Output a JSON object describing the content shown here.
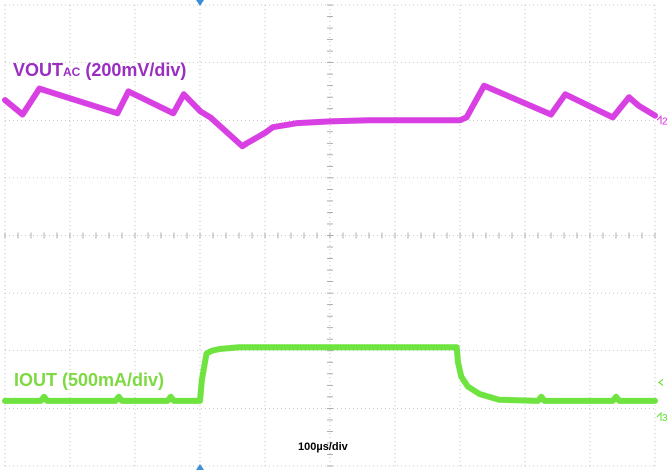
{
  "colors": {
    "ch2": "#d42be0",
    "ch2_label": "#9a2ec0",
    "ch3": "#5fe02a",
    "ch3_label": "#7fd943",
    "grid": "#9a9a9a",
    "trigger": "#3a8fd6"
  },
  "labels": {
    "ch2_main": "VOUT",
    "ch2_sub": "AC",
    "ch2_scale": " (200mV/div)",
    "ch3": "IOUT (500mA/div)",
    "timebase": "100µs/div"
  },
  "markers": {
    "ch2": "2",
    "ch3": "3"
  },
  "chart_data": {
    "type": "line",
    "title": "",
    "x_unit": "µs",
    "xlim": [
      0,
      1000
    ],
    "y_unit": "div",
    "ylim": [
      -4,
      4
    ],
    "grid": true,
    "series": [
      {
        "name": "VOUTAC (200mV/div)",
        "x": [
          0,
          27,
          53,
          173,
          190,
          259,
          275,
          301,
          316,
          365,
          372,
          400,
          412,
          450,
          500,
          560,
          600,
          650,
          700,
          710,
          737,
          840,
          862,
          935,
          960,
          975,
          1000
        ],
        "y": [
          2.35,
          2.1,
          2.55,
          2.12,
          2.5,
          2.12,
          2.45,
          2.15,
          2.05,
          1.55,
          1.6,
          1.78,
          1.88,
          1.95,
          1.98,
          2.0,
          2.0,
          2.0,
          2.0,
          2.05,
          2.6,
          2.1,
          2.45,
          2.05,
          2.4,
          2.25,
          2.08
        ]
      },
      {
        "name": "IOUT (500mA/div)",
        "x": [
          0,
          55,
          60,
          65,
          170,
          175,
          180,
          250,
          255,
          260,
          300,
          303,
          310,
          318,
          330,
          360,
          400,
          500,
          600,
          695,
          697,
          702,
          712,
          730,
          760,
          820,
          825,
          830,
          935,
          940,
          945,
          1000
        ],
        "y": [
          -2.87,
          -2.87,
          -2.8,
          -2.87,
          -2.87,
          -2.8,
          -2.87,
          -2.87,
          -2.8,
          -2.87,
          -2.87,
          -2.5,
          -2.05,
          -2.0,
          -1.97,
          -1.94,
          -1.94,
          -1.94,
          -1.94,
          -1.94,
          -2.2,
          -2.45,
          -2.62,
          -2.75,
          -2.85,
          -2.87,
          -2.8,
          -2.87,
          -2.87,
          -2.8,
          -2.87,
          -2.87
        ]
      }
    ]
  }
}
